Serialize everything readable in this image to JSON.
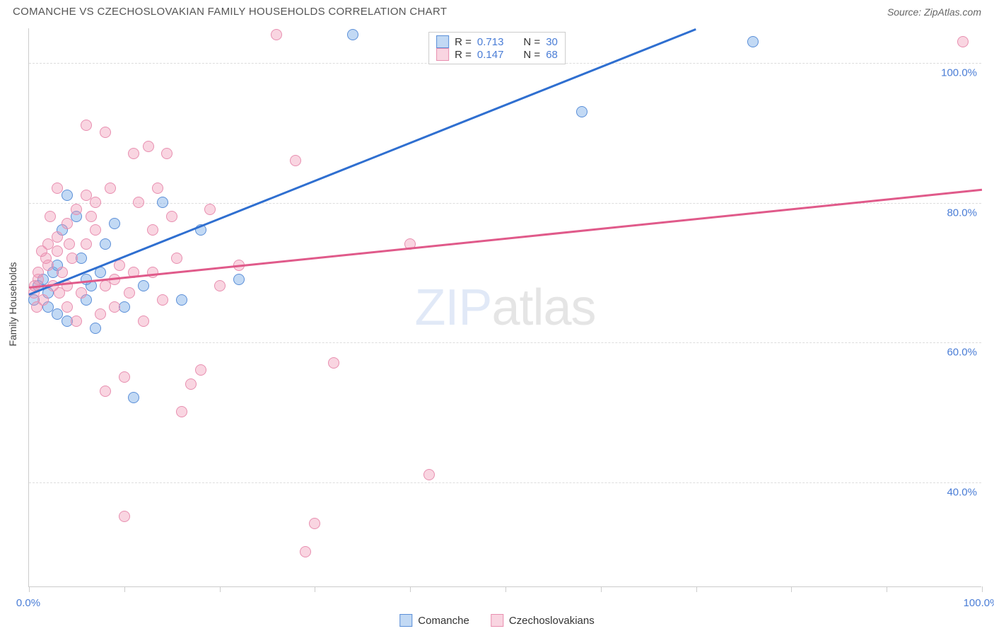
{
  "header": {
    "title": "COMANCHE VS CZECHOSLOVAKIAN FAMILY HOUSEHOLDS CORRELATION CHART",
    "source_prefix": "Source: ",
    "source": "ZipAtlas.com"
  },
  "watermark": {
    "part1": "ZIP",
    "part2": "atlas"
  },
  "chart": {
    "type": "scatter",
    "yaxis_label": "Family Households",
    "plot_bg": "#ffffff",
    "grid_color": "#dddddd",
    "axis_color": "#cccccc",
    "xlim": [
      0,
      100
    ],
    "ylim": [
      25,
      105
    ],
    "yticks": [
      {
        "v": 40,
        "label": "40.0%"
      },
      {
        "v": 60,
        "label": "60.0%"
      },
      {
        "v": 80,
        "label": "80.0%"
      },
      {
        "v": 100,
        "label": "100.0%"
      }
    ],
    "xticks_major": [
      0,
      100
    ],
    "xticks_minor": [
      10,
      20,
      30,
      40,
      50,
      60,
      70,
      80,
      90
    ],
    "xlabels": [
      {
        "v": 0,
        "label": "0.0%"
      },
      {
        "v": 100,
        "label": "100.0%"
      }
    ],
    "series": [
      {
        "name": "Comanche",
        "fill": "rgba(120,170,230,0.45)",
        "stroke": "#5b8fd8",
        "line_color": "#2f6fd0",
        "marker_radius": 8,
        "stats": {
          "R_label": "R =",
          "R": "0.713",
          "N_label": "N =",
          "N": "30"
        },
        "trend": {
          "x1": 0,
          "y1": 67,
          "x2": 70,
          "y2": 105
        },
        "points": [
          [
            0.5,
            66
          ],
          [
            1,
            68
          ],
          [
            1.5,
            69
          ],
          [
            2,
            65
          ],
          [
            2.5,
            70
          ],
          [
            3,
            64
          ],
          [
            3.5,
            76
          ],
          [
            4,
            63
          ],
          [
            4,
            81
          ],
          [
            5,
            78
          ],
          [
            5.5,
            72
          ],
          [
            6,
            66
          ],
          [
            6.5,
            68
          ],
          [
            7,
            62
          ],
          [
            7.5,
            70
          ],
          [
            8,
            74
          ],
          [
            9,
            77
          ],
          [
            10,
            65
          ],
          [
            11,
            52
          ],
          [
            12,
            68
          ],
          [
            14,
            80
          ],
          [
            16,
            66
          ],
          [
            18,
            76
          ],
          [
            22,
            69
          ],
          [
            34,
            104
          ],
          [
            58,
            93
          ],
          [
            76,
            103
          ],
          [
            2,
            67
          ],
          [
            3,
            71
          ],
          [
            6,
            69
          ]
        ]
      },
      {
        "name": "Czechoslovakians",
        "fill": "rgba(240,150,180,0.40)",
        "stroke": "#e88fb0",
        "line_color": "#e05a8a",
        "marker_radius": 8,
        "stats": {
          "R_label": "R =",
          "R": "0.147",
          "N_label": "N =",
          "N": "68"
        },
        "trend": {
          "x1": 0,
          "y1": 68,
          "x2": 100,
          "y2": 82
        },
        "points": [
          [
            0.5,
            67
          ],
          [
            1,
            69
          ],
          [
            1.5,
            66
          ],
          [
            2,
            71
          ],
          [
            2.5,
            68
          ],
          [
            3,
            73
          ],
          [
            3.5,
            70
          ],
          [
            4,
            65
          ],
          [
            4.5,
            72
          ],
          [
            5,
            79
          ],
          [
            5.5,
            67
          ],
          [
            6,
            91
          ],
          [
            6.5,
            78
          ],
          [
            7,
            76
          ],
          [
            7.5,
            64
          ],
          [
            8,
            90
          ],
          [
            8.5,
            82
          ],
          [
            9,
            69
          ],
          [
            9.5,
            71
          ],
          [
            10,
            55
          ],
          [
            10.5,
            67
          ],
          [
            11,
            87
          ],
          [
            11.5,
            80
          ],
          [
            12,
            63
          ],
          [
            12.5,
            88
          ],
          [
            13,
            70
          ],
          [
            13.5,
            82
          ],
          [
            14,
            66
          ],
          [
            14.5,
            87
          ],
          [
            15,
            78
          ],
          [
            15.5,
            72
          ],
          [
            16,
            50
          ],
          [
            17,
            54
          ],
          [
            18,
            56
          ],
          [
            19,
            79
          ],
          [
            20,
            68
          ],
          [
            22,
            71
          ],
          [
            26,
            104
          ],
          [
            28,
            86
          ],
          [
            29,
            30
          ],
          [
            30,
            34
          ],
          [
            32,
            57
          ],
          [
            40,
            74
          ],
          [
            42,
            41
          ],
          [
            98,
            103
          ],
          [
            3,
            75
          ],
          [
            4,
            77
          ],
          [
            2,
            74
          ],
          [
            1,
            70
          ],
          [
            0.8,
            65
          ],
          [
            6,
            74
          ],
          [
            7,
            80
          ],
          [
            8,
            68
          ],
          [
            5,
            63
          ],
          [
            9,
            65
          ],
          [
            3,
            82
          ],
          [
            4,
            68
          ],
          [
            11,
            70
          ],
          [
            13,
            76
          ],
          [
            10,
            35
          ],
          [
            8,
            53
          ],
          [
            6,
            81
          ],
          [
            2.2,
            78
          ],
          [
            4.2,
            74
          ],
          [
            1.8,
            72
          ],
          [
            3.2,
            67
          ],
          [
            0.6,
            68
          ],
          [
            1.3,
            73
          ]
        ]
      }
    ]
  },
  "bottom_legend": {
    "items": [
      {
        "label": "Comanche",
        "fill": "rgba(120,170,230,0.45)",
        "stroke": "#5b8fd8"
      },
      {
        "label": "Czechoslovakians",
        "fill": "rgba(240,150,180,0.40)",
        "stroke": "#e88fb0"
      }
    ]
  }
}
